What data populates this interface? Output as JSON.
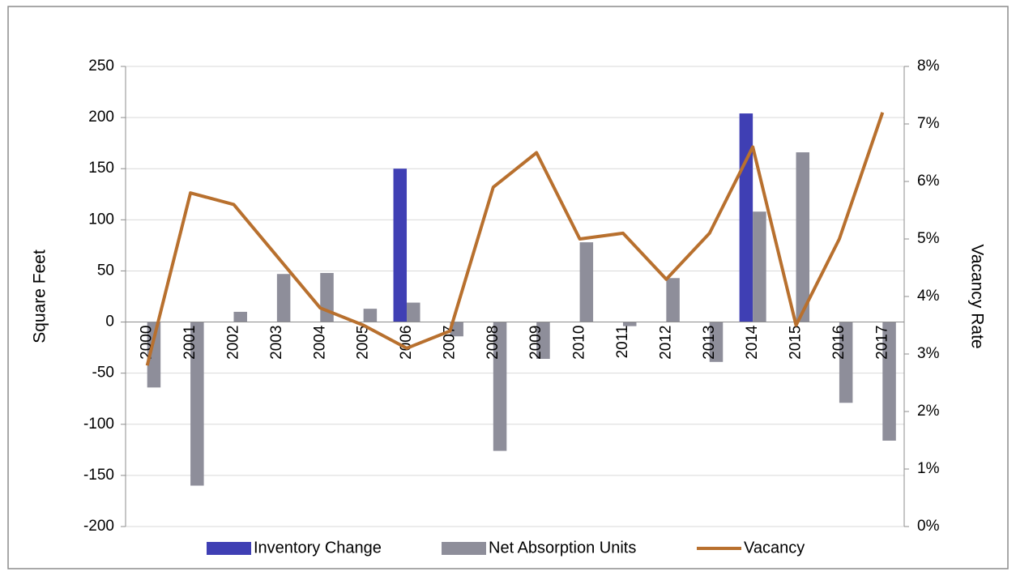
{
  "chart_data": {
    "type": "bar_line",
    "ylabel": "Square Feet",
    "y2label": "Vacancy Rate",
    "categories": [
      "2000",
      "2001",
      "2002",
      "2003",
      "2004",
      "2005",
      "2006",
      "2007",
      "2008",
      "2009",
      "2010",
      "2011",
      "2012",
      "2013",
      "2014",
      "2015",
      "2016",
      "2017"
    ],
    "series": [
      {
        "name": "Inventory Change",
        "type": "bar",
        "color": "#3f3fb4",
        "values": [
          0,
          0,
          0,
          0,
          0,
          0,
          150,
          0,
          0,
          0,
          0,
          0,
          0,
          0,
          204,
          0,
          0,
          0
        ]
      },
      {
        "name": "Net Absorption Units",
        "type": "bar",
        "color": "#8e8e9a",
        "values": [
          -64,
          -160,
          10,
          47,
          48,
          13,
          19,
          -14,
          -126,
          -36,
          78,
          -4,
          43,
          -39,
          108,
          166,
          -79,
          -116
        ]
      },
      {
        "name": "Vacancy",
        "type": "line",
        "axis": "y2",
        "color": "#b8702e",
        "values": [
          2.8,
          5.8,
          5.6,
          4.7,
          3.8,
          3.5,
          3.1,
          3.4,
          5.9,
          6.5,
          5.0,
          5.1,
          4.3,
          5.1,
          6.6,
          3.5,
          5.0,
          7.2
        ]
      }
    ],
    "ylim": [
      -200,
      250
    ],
    "yticks": [
      -200,
      -150,
      -100,
      -50,
      0,
      50,
      100,
      150,
      200,
      250
    ],
    "y2lim": [
      0,
      8
    ],
    "y2ticks": [
      {
        "value": 0,
        "label": "0%"
      },
      {
        "value": 1,
        "label": "1%"
      },
      {
        "value": 2,
        "label": "2%"
      },
      {
        "value": 3,
        "label": "3%"
      },
      {
        "value": 4,
        "label": "4%"
      },
      {
        "value": 5,
        "label": "5%"
      },
      {
        "value": 6,
        "label": "6%"
      },
      {
        "value": 7,
        "label": "7%"
      },
      {
        "value": 8,
        "label": "8%"
      }
    ],
    "grid": true,
    "legend": "bottom"
  }
}
